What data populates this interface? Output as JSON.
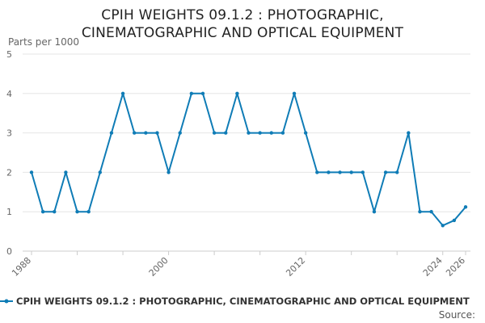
{
  "chart_data": {
    "type": "line",
    "title_line1": "CPIH WEIGHTS 09.1.2 : PHOTOGRAPHIC,",
    "title_line2": "CINEMATOGRAPHIC AND OPTICAL EQUIPMENT",
    "ylabel": "Parts per 1000",
    "xlabel": "",
    "ylim": [
      0,
      5
    ],
    "yticks": [
      0,
      1,
      2,
      3,
      4,
      5
    ],
    "xlim": [
      1988,
      2026
    ],
    "xticks": [
      1988,
      2000,
      2012,
      2024,
      2026
    ],
    "grid": true,
    "legend_position": "bottom",
    "source_label": "Source:",
    "series": [
      {
        "name": "CPIH WEIGHTS 09.1.2 : PHOTOGRAPHIC, CINEMATOGRAPHIC AND OPTICAL EQUIPMENT",
        "color": "#0f7cb6",
        "x": [
          1988,
          1989,
          1990,
          1991,
          1992,
          1993,
          1994,
          1995,
          1996,
          1997,
          1998,
          1999,
          2000,
          2001,
          2002,
          2003,
          2004,
          2005,
          2006,
          2007,
          2008,
          2009,
          2010,
          2011,
          2012,
          2013,
          2014,
          2015,
          2016,
          2017,
          2018,
          2019,
          2020,
          2021,
          2022,
          2023,
          2024,
          2025,
          2026
        ],
        "values": [
          2,
          1,
          1,
          2,
          1,
          1,
          2,
          3,
          4,
          3,
          3,
          3,
          2,
          3,
          4,
          4,
          3,
          3,
          4,
          3,
          3,
          3,
          3,
          4,
          3,
          2,
          2,
          2,
          2,
          2,
          1,
          2,
          2,
          3,
          1,
          1,
          0.65,
          0.78,
          1.12
        ]
      }
    ]
  }
}
